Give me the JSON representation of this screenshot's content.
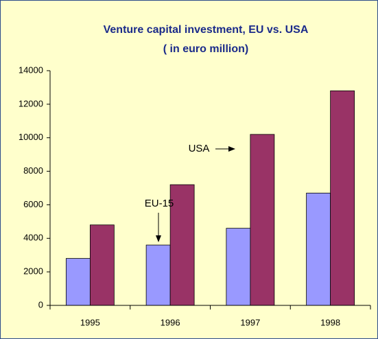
{
  "chart_data": {
    "type": "bar",
    "title": "Venture capital investment, EU vs. USA",
    "subtitle": "( in euro million)",
    "categories": [
      "1995",
      "1996",
      "1997",
      "1998"
    ],
    "series": [
      {
        "name": "EU-15",
        "color": "#9999ff",
        "values": [
          2800,
          3600,
          4600,
          6700
        ]
      },
      {
        "name": "USA",
        "color": "#993366",
        "values": [
          4800,
          7200,
          10200,
          12800
        ]
      }
    ],
    "ylim": [
      0,
      14000
    ],
    "yticks": [
      0,
      2000,
      4000,
      6000,
      8000,
      10000,
      12000,
      14000
    ],
    "grid": false
  }
}
